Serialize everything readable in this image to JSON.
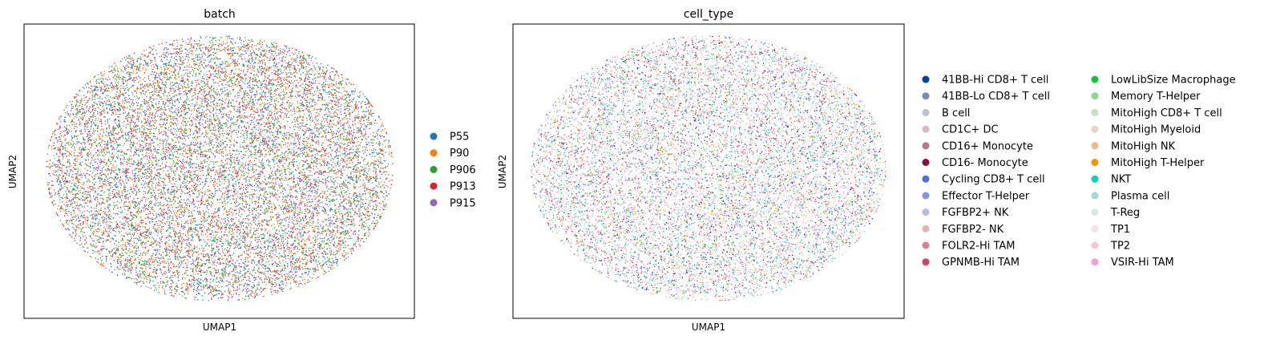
{
  "chart_data": [
    {
      "type": "scatter",
      "title": "batch",
      "xlabel": "UMAP1",
      "ylabel": "UMAP2",
      "grid": false,
      "ticks": false,
      "legend_position": "right",
      "point_cloud": "dense elliptical embedding of single cells, categories fully intermixed",
      "series": [
        {
          "name": "P55",
          "color": "#1f77b4"
        },
        {
          "name": "P90",
          "color": "#ff7f0e"
        },
        {
          "name": "P906",
          "color": "#2ca02c"
        },
        {
          "name": "P913",
          "color": "#d62728"
        },
        {
          "name": "P915",
          "color": "#9467bd"
        }
      ]
    },
    {
      "type": "scatter",
      "title": "cell_type",
      "xlabel": "UMAP1",
      "ylabel": "UMAP2",
      "grid": false,
      "ticks": false,
      "legend_position": "right",
      "point_cloud": "dense elliptical embedding of single cells, categories fully intermixed",
      "series": [
        {
          "name": "41BB-Hi CD8+ T cell",
          "color": "#023fa5"
        },
        {
          "name": "41BB-Lo CD8+ T cell",
          "color": "#7d87b9"
        },
        {
          "name": "B cell",
          "color": "#bec1d4"
        },
        {
          "name": "CD1C+ DC",
          "color": "#d6bcc0"
        },
        {
          "name": "CD16+ Monocyte",
          "color": "#bb7784"
        },
        {
          "name": "CD16- Monocyte",
          "color": "#8e063b"
        },
        {
          "name": "Cycling CD8+ T cell",
          "color": "#4a6fe3"
        },
        {
          "name": "Effector T-Helper",
          "color": "#8595e1"
        },
        {
          "name": "FGFBP2+ NK",
          "color": "#b5bbe3"
        },
        {
          "name": "FGFBP2- NK",
          "color": "#e6afb9"
        },
        {
          "name": "FOLR2-Hi TAM",
          "color": "#e07b91"
        },
        {
          "name": "GPNMB-Hi TAM",
          "color": "#d33f6a"
        },
        {
          "name": "LowLibSize Macrophage",
          "color": "#11c638"
        },
        {
          "name": "Memory T-Helper",
          "color": "#8dd593"
        },
        {
          "name": "MitoHigh CD8+ T cell",
          "color": "#c6dec7"
        },
        {
          "name": "MitoHigh Myeloid",
          "color": "#ead3c6"
        },
        {
          "name": "MitoHigh NK",
          "color": "#f0b98d"
        },
        {
          "name": "MitoHigh T-Helper",
          "color": "#ef9708"
        },
        {
          "name": "NKT",
          "color": "#0fcfc0"
        },
        {
          "name": "Plasma cell",
          "color": "#9cded6"
        },
        {
          "name": "T-Reg",
          "color": "#d5eae7"
        },
        {
          "name": "TP1",
          "color": "#f3e1eb"
        },
        {
          "name": "TP2",
          "color": "#f6c4e1"
        },
        {
          "name": "VSIR-Hi TAM",
          "color": "#f79cd4"
        }
      ]
    }
  ]
}
